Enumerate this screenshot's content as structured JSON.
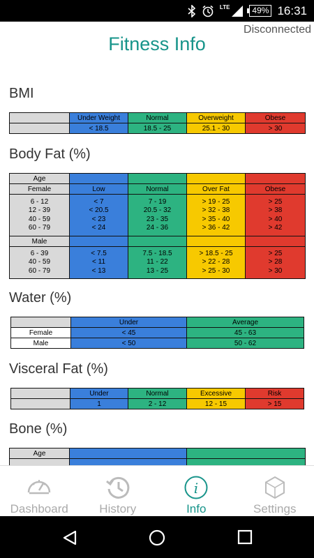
{
  "status_bar": {
    "battery": "49%",
    "time": "16:31",
    "network": "LTE"
  },
  "header": {
    "connection_status": "Disconnected",
    "title": "Fitness Info"
  },
  "sections": {
    "bmi": {
      "title": "BMI",
      "headers": [
        "Under Weight",
        "Normal",
        "Overweight",
        "Obese"
      ],
      "values": [
        "< 18.5",
        "18.5 - 25",
        "25.1 - 30",
        "> 30"
      ]
    },
    "body_fat": {
      "title": "Body Fat (%)",
      "age_label": "Age",
      "female_label": "Female",
      "headers": [
        "Low",
        "Normal",
        "Over Fat",
        "Obese"
      ],
      "female_ages": "6 - 12\n12 - 39\n40 - 59\n60 - 79",
      "female_cols": [
        "< 7\n< 20.5\n< 23\n< 24",
        "7 - 19\n20.5 - 32\n23 - 35\n24 - 36",
        "> 19 - 25\n> 32 - 38\n> 35 - 40\n> 36 - 42",
        "> 25\n> 38\n> 40\n> 42"
      ],
      "male_label": "Male",
      "male_ages": "6 - 39\n40 - 59\n60 - 79",
      "male_cols": [
        "< 7.5\n< 11\n< 13",
        "7.5 - 18.5\n11 - 22\n13 - 25",
        "> 18.5 - 25\n> 22 - 28\n> 25 - 30",
        "> 25\n> 28\n> 30"
      ]
    },
    "water": {
      "title": "Water (%)",
      "headers": [
        "Under",
        "Average"
      ],
      "rows": [
        {
          "label": "Female",
          "values": [
            "< 45",
            "45 - 63"
          ]
        },
        {
          "label": "Male",
          "values": [
            "< 50",
            "50 - 62"
          ]
        }
      ]
    },
    "visceral_fat": {
      "title": "Visceral Fat (%)",
      "headers": [
        "Under",
        "Normal",
        "Excessive",
        "Risk"
      ],
      "values": [
        "1",
        "2 - 12",
        "12 - 15",
        "> 15"
      ]
    },
    "bone": {
      "title": "Bone (%)",
      "age_label": "Age"
    }
  },
  "nav": {
    "items": [
      {
        "label": "Dashboard",
        "icon": "gauge-icon"
      },
      {
        "label": "History",
        "icon": "history-icon"
      },
      {
        "label": "Info",
        "icon": "info-icon",
        "active": true
      },
      {
        "label": "Settings",
        "icon": "settings-hexagon-icon"
      }
    ]
  },
  "colors": {
    "accent": "#17948a",
    "low": "#3a7fdb",
    "normal": "#2db381",
    "over": "#f7c900",
    "high": "#e03a2e",
    "label_bg": "#d9d9d9"
  }
}
